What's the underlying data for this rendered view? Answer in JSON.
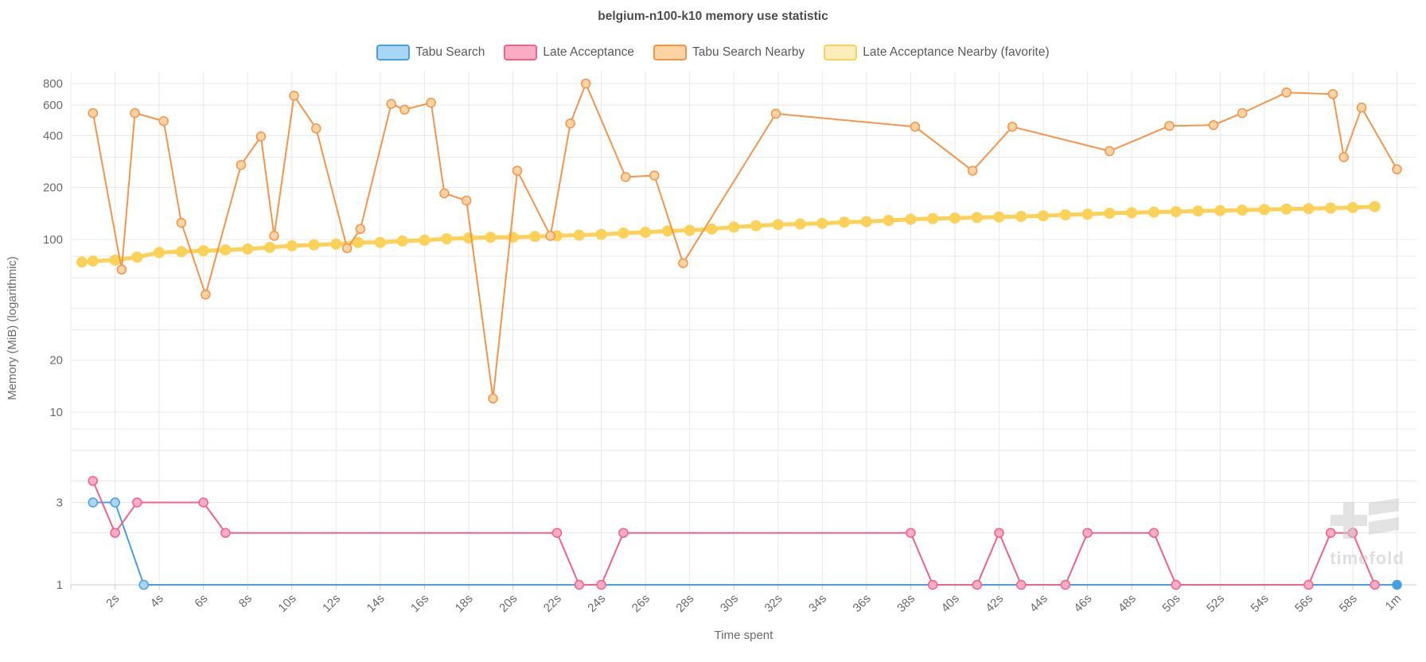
{
  "title": "belgium-n100-k10 memory use statistic",
  "watermark": "timefold",
  "colors": {
    "grid": "#e8e8e8",
    "axis_line": "#cccccc",
    "tick_text": "#6b6b6b",
    "title_text": "#4d4d4d",
    "legend_text": "#5a5a5a",
    "watermark_gray": "#cdcdcd"
  },
  "chart_data": {
    "type": "line",
    "title": "belgium-n100-k10 memory use statistic",
    "xlabel": "Time spent",
    "ylabel": "Memory (MiB) (logarithmic)",
    "x_unit": "seconds",
    "y_scale": "logarithmic",
    "xlim": [
      0,
      62
    ],
    "ylim": [
      1,
      940
    ],
    "legend_position": "top-center",
    "grid": true,
    "y_gridlines": [
      1,
      2,
      3,
      4,
      6,
      8,
      10,
      20,
      30,
      40,
      60,
      80,
      100,
      200,
      300,
      400,
      600,
      800
    ],
    "y_tick_labels": [
      {
        "v": 800,
        "label": "800"
      },
      {
        "v": 600,
        "label": "600"
      },
      {
        "v": 400,
        "label": "400"
      },
      {
        "v": 200,
        "label": "200"
      },
      {
        "v": 100,
        "label": "100"
      },
      {
        "v": 20,
        "label": "20"
      },
      {
        "v": 10,
        "label": "10"
      },
      {
        "v": 3,
        "label": "3"
      },
      {
        "v": 1,
        "label": "1"
      }
    ],
    "x_ticks": [
      {
        "t": 2,
        "label": "2s"
      },
      {
        "t": 4,
        "label": "4s"
      },
      {
        "t": 6,
        "label": "6s"
      },
      {
        "t": 8,
        "label": "8s"
      },
      {
        "t": 10,
        "label": "10s"
      },
      {
        "t": 12,
        "label": "12s"
      },
      {
        "t": 14,
        "label": "14s"
      },
      {
        "t": 16,
        "label": "16s"
      },
      {
        "t": 18,
        "label": "18s"
      },
      {
        "t": 20,
        "label": "20s"
      },
      {
        "t": 22,
        "label": "22s"
      },
      {
        "t": 24,
        "label": "24s"
      },
      {
        "t": 26,
        "label": "26s"
      },
      {
        "t": 28,
        "label": "28s"
      },
      {
        "t": 30,
        "label": "30s"
      },
      {
        "t": 32,
        "label": "32s"
      },
      {
        "t": 34,
        "label": "34s"
      },
      {
        "t": 36,
        "label": "36s"
      },
      {
        "t": 38,
        "label": "38s"
      },
      {
        "t": 40,
        "label": "40s"
      },
      {
        "t": 42,
        "label": "42s"
      },
      {
        "t": 44,
        "label": "44s"
      },
      {
        "t": 46,
        "label": "46s"
      },
      {
        "t": 48,
        "label": "48s"
      },
      {
        "t": 50,
        "label": "50s"
      },
      {
        "t": 52,
        "label": "52s"
      },
      {
        "t": 54,
        "label": "54s"
      },
      {
        "t": 56,
        "label": "56s"
      },
      {
        "t": 58,
        "label": "58s"
      },
      {
        "t": 60,
        "label": "1m"
      }
    ],
    "series": [
      {
        "id": "tabu-search",
        "name": "Tabu Search",
        "line_color": "#47a0e6",
        "marker_fill": "#a9d6f7",
        "legend_fill": "#a9d6f7",
        "line_width": 2,
        "marker_radius": 5.5,
        "end_marker_solid": true,
        "points": [
          [
            1,
            3
          ],
          [
            2,
            3
          ],
          [
            3.3,
            1
          ],
          [
            60,
            1
          ]
        ]
      },
      {
        "id": "late-acceptance",
        "name": "Late Acceptance",
        "line_color": "#f4608c",
        "marker_fill": "#f8adc5",
        "legend_fill": "#f8adc5",
        "line_width": 2,
        "marker_radius": 5.5,
        "end_marker_solid": false,
        "points": [
          [
            1,
            4
          ],
          [
            2,
            2
          ],
          [
            3,
            3
          ],
          [
            6,
            3
          ],
          [
            7,
            2
          ],
          [
            22,
            2
          ],
          [
            23,
            1
          ],
          [
            24,
            1
          ],
          [
            25,
            2
          ],
          [
            38,
            2
          ],
          [
            39,
            1
          ],
          [
            41,
            1
          ],
          [
            42,
            2
          ],
          [
            43,
            1
          ],
          [
            45,
            1
          ],
          [
            46,
            2
          ],
          [
            49,
            2
          ],
          [
            50,
            1
          ],
          [
            56,
            1
          ],
          [
            57,
            2
          ],
          [
            58,
            2
          ],
          [
            59,
            1
          ]
        ]
      },
      {
        "id": "late-acceptance-nearby",
        "name": "Late Acceptance Nearby (favorite)",
        "line_color": "#fbd257",
        "marker_fill": "#fbd257",
        "legend_fill": "#fdeebb",
        "line_width": 5,
        "marker_radius": 7,
        "solid_markers": true,
        "end_marker_solid": false,
        "points": [
          [
            0.5,
            74
          ],
          [
            1,
            75
          ],
          [
            2,
            76
          ],
          [
            3,
            79
          ],
          [
            4,
            84
          ],
          [
            5,
            85
          ],
          [
            6,
            86
          ],
          [
            7,
            87
          ],
          [
            8,
            88
          ],
          [
            9,
            90
          ],
          [
            10,
            92
          ],
          [
            11,
            93
          ],
          [
            12,
            94
          ],
          [
            13,
            96
          ],
          [
            14,
            96
          ],
          [
            15,
            98
          ],
          [
            16,
            99
          ],
          [
            17,
            101
          ],
          [
            18,
            102
          ],
          [
            19,
            103
          ],
          [
            20,
            103
          ],
          [
            21,
            104
          ],
          [
            22,
            105
          ],
          [
            23,
            106
          ],
          [
            24,
            107
          ],
          [
            25,
            109
          ],
          [
            26,
            110
          ],
          [
            27,
            112
          ],
          [
            28,
            113
          ],
          [
            29,
            115
          ],
          [
            30,
            118
          ],
          [
            31,
            120
          ],
          [
            32,
            122
          ],
          [
            33,
            123
          ],
          [
            34,
            124
          ],
          [
            35,
            126
          ],
          [
            36,
            127
          ],
          [
            37,
            129
          ],
          [
            38,
            131
          ],
          [
            39,
            132
          ],
          [
            40,
            133
          ],
          [
            41,
            134
          ],
          [
            42,
            135
          ],
          [
            43,
            136
          ],
          [
            44,
            137
          ],
          [
            45,
            139
          ],
          [
            46,
            140
          ],
          [
            47,
            142
          ],
          [
            48,
            143
          ],
          [
            49,
            144
          ],
          [
            50,
            145
          ],
          [
            51,
            146
          ],
          [
            52,
            147
          ],
          [
            53,
            148
          ],
          [
            54,
            149
          ],
          [
            55,
            150
          ],
          [
            56,
            151
          ],
          [
            57,
            152
          ],
          [
            58,
            153
          ],
          [
            59,
            155
          ]
        ]
      },
      {
        "id": "tabu-search-nearby",
        "name": "Tabu Search Nearby",
        "line_color": "#f7944a",
        "marker_fill": "#fcd3a2",
        "legend_fill": "#fcd3a2",
        "line_width": 2,
        "marker_radius": 5.5,
        "end_marker_solid": false,
        "points": [
          [
            1,
            540
          ],
          [
            2.3,
            67
          ],
          [
            2.9,
            540
          ],
          [
            4.2,
            485
          ],
          [
            5,
            125
          ],
          [
            6.1,
            48
          ],
          [
            7.7,
            270
          ],
          [
            8.6,
            395
          ],
          [
            9.2,
            105
          ],
          [
            10.1,
            680
          ],
          [
            11.1,
            440
          ],
          [
            12.5,
            89
          ],
          [
            13.1,
            115
          ],
          [
            14.5,
            610
          ],
          [
            15.1,
            565
          ],
          [
            16.3,
            620
          ],
          [
            16.9,
            185
          ],
          [
            17.9,
            168
          ],
          [
            19.1,
            12
          ],
          [
            20.2,
            250
          ],
          [
            21.7,
            105
          ],
          [
            22.6,
            470
          ],
          [
            23.3,
            800
          ],
          [
            25.1,
            230
          ],
          [
            26.4,
            235
          ],
          [
            27.7,
            73
          ],
          [
            31.9,
            535
          ],
          [
            38.2,
            450
          ],
          [
            40.8,
            250
          ],
          [
            42.6,
            450
          ],
          [
            47,
            325
          ],
          [
            49.7,
            455
          ],
          [
            51.7,
            460
          ],
          [
            53,
            540
          ],
          [
            55,
            710
          ],
          [
            57.1,
            695
          ],
          [
            57.6,
            300
          ],
          [
            58.4,
            580
          ],
          [
            60,
            255
          ]
        ]
      }
    ],
    "legend_order": [
      "tabu-search",
      "late-acceptance",
      "tabu-search-nearby",
      "late-acceptance-nearby"
    ]
  }
}
